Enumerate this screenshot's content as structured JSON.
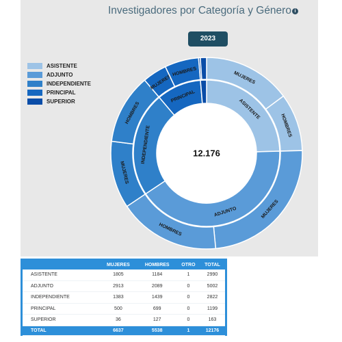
{
  "title": "Investigadores por Categoría y Género",
  "info_icon": "info-icon",
  "year_label": "2023",
  "center_total": "12.176",
  "chart_data": {
    "type": "sunburst",
    "title": "Investigadores por Categoría y Género",
    "legend_position": "left",
    "categories": [
      {
        "name": "ASISTENTE",
        "color": "#9dc3e6",
        "value": 2990,
        "children": [
          {
            "name": "MUJERES",
            "value": 1805
          },
          {
            "name": "HOMBRES",
            "value": 1184
          }
        ]
      },
      {
        "name": "ADJUNTO",
        "color": "#5a9bd8",
        "value": 5002,
        "children": [
          {
            "name": "MUJERES",
            "value": 2913
          },
          {
            "name": "HOMBRES",
            "value": 2089
          }
        ]
      },
      {
        "name": "INDEPENDIENTE",
        "color": "#2f80c9",
        "value": 2822,
        "children": [
          {
            "name": "MUJERES",
            "value": 1383
          },
          {
            "name": "HOMBRES",
            "value": 1439
          }
        ]
      },
      {
        "name": "PRINCIPAL",
        "color": "#1567c0",
        "value": 1199,
        "children": [
          {
            "name": "MUJERES",
            "value": 500
          },
          {
            "name": "HOMBRES",
            "value": 699
          }
        ]
      },
      {
        "name": "SUPERIOR",
        "color": "#0a4da8",
        "value": 163,
        "children": [
          {
            "name": "MUJERES",
            "value": 36
          },
          {
            "name": "HOMBRES",
            "value": 127
          }
        ]
      }
    ]
  },
  "table": {
    "headers": [
      "",
      "MUJERES",
      "HOMBRES",
      "OTRO",
      "TOTAL"
    ],
    "rows": [
      [
        "ASISTENTE",
        "1805",
        "1184",
        "1",
        "2990"
      ],
      [
        "ADJUNTO",
        "2913",
        "2089",
        "0",
        "5002"
      ],
      [
        "INDEPENDIENTE",
        "1383",
        "1439",
        "0",
        "2822"
      ],
      [
        "PRINCIPAL",
        "500",
        "699",
        "0",
        "1199"
      ],
      [
        "SUPERIOR",
        "36",
        "127",
        "0",
        "163"
      ]
    ],
    "total": [
      "TOTAL",
      "6637",
      "5538",
      "1",
      "12176"
    ]
  }
}
